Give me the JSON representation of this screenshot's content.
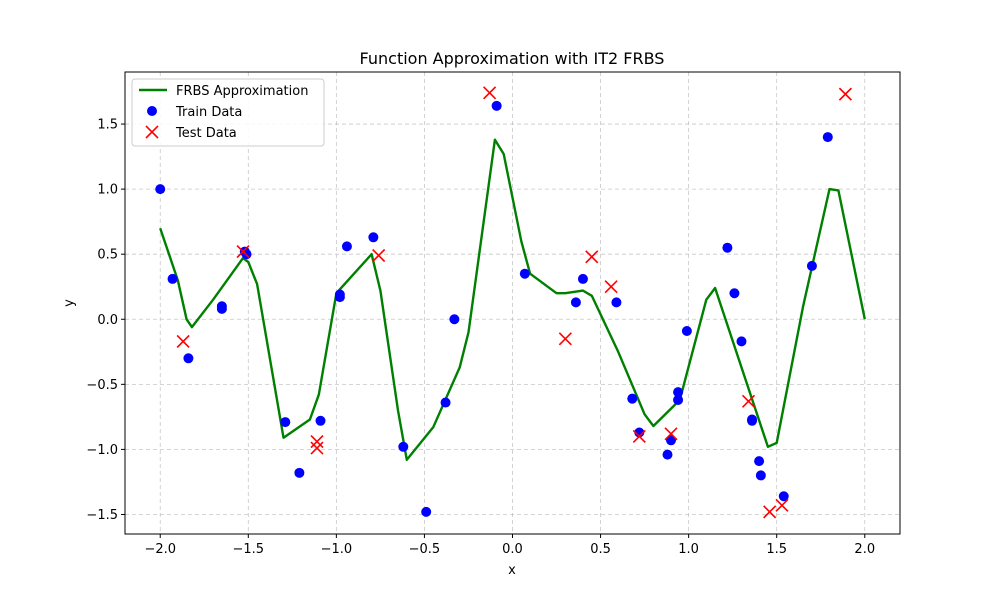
{
  "chart_data": {
    "type": "line",
    "title": "Function Approximation with IT2 FRBS",
    "xlabel": "x",
    "ylabel": "y",
    "xlim": [
      -2.2,
      2.2
    ],
    "ylim": [
      -1.65,
      1.9
    ],
    "x_ticks": [
      -2.0,
      -1.5,
      -1.0,
      -0.5,
      0.0,
      0.5,
      1.0,
      1.5,
      2.0
    ],
    "x_tick_labels": [
      "−2.0",
      "−1.5",
      "−1.0",
      "−0.5",
      "0.0",
      "0.5",
      "1.0",
      "1.5",
      "2.0"
    ],
    "y_ticks": [
      -1.5,
      -1.0,
      -0.5,
      0.0,
      0.5,
      1.0,
      1.5
    ],
    "y_tick_labels": [
      "−1.5",
      "−1.0",
      "−0.5",
      "0.0",
      "0.5",
      "1.0",
      "1.5"
    ],
    "grid": true,
    "legend_position": "top-left",
    "series": [
      {
        "name": "FRBS Approximation",
        "kind": "line",
        "color": "#008000",
        "points": [
          [
            -2.0,
            0.7
          ],
          [
            -1.9,
            0.3
          ],
          [
            -1.85,
            0.0
          ],
          [
            -1.82,
            -0.06
          ],
          [
            -1.7,
            0.15
          ],
          [
            -1.53,
            0.47
          ],
          [
            -1.5,
            0.44
          ],
          [
            -1.45,
            0.27
          ],
          [
            -1.3,
            -0.91
          ],
          [
            -1.15,
            -0.77
          ],
          [
            -1.1,
            -0.58
          ],
          [
            -1.0,
            0.2
          ],
          [
            -0.8,
            0.5
          ],
          [
            -0.75,
            0.22
          ],
          [
            -0.65,
            -0.7
          ],
          [
            -0.6,
            -1.08
          ],
          [
            -0.45,
            -0.83
          ],
          [
            -0.3,
            -0.37
          ],
          [
            -0.25,
            -0.1
          ],
          [
            -0.1,
            1.38
          ],
          [
            -0.05,
            1.27
          ],
          [
            0.05,
            0.6
          ],
          [
            0.1,
            0.35
          ],
          [
            0.25,
            0.2
          ],
          [
            0.3,
            0.2
          ],
          [
            0.4,
            0.22
          ],
          [
            0.45,
            0.18
          ],
          [
            0.6,
            -0.25
          ],
          [
            0.75,
            -0.73
          ],
          [
            0.8,
            -0.82
          ],
          [
            0.95,
            -0.62
          ],
          [
            1.1,
            0.15
          ],
          [
            1.15,
            0.24
          ],
          [
            1.45,
            -0.98
          ],
          [
            1.5,
            -0.95
          ],
          [
            1.65,
            0.1
          ],
          [
            1.8,
            1.0
          ],
          [
            1.85,
            0.99
          ],
          [
            2.0,
            0.0
          ]
        ]
      },
      {
        "name": "Train Data",
        "kind": "scatter",
        "marker": "circle",
        "color": "#0000ff",
        "points": [
          [
            -2.0,
            1.0
          ],
          [
            -1.93,
            0.31
          ],
          [
            -1.84,
            -0.3
          ],
          [
            -1.65,
            0.1
          ],
          [
            -1.65,
            0.08
          ],
          [
            -1.52,
            0.52
          ],
          [
            -1.51,
            0.5
          ],
          [
            -1.29,
            -0.79
          ],
          [
            -1.21,
            -1.18
          ],
          [
            -1.09,
            -0.78
          ],
          [
            -0.98,
            0.19
          ],
          [
            -0.98,
            0.17
          ],
          [
            -0.94,
            0.56
          ],
          [
            -0.79,
            0.63
          ],
          [
            -0.62,
            -0.98
          ],
          [
            -0.49,
            -1.48
          ],
          [
            -0.38,
            -0.64
          ],
          [
            -0.33,
            0.0
          ],
          [
            -0.09,
            1.64
          ],
          [
            0.07,
            0.35
          ],
          [
            0.36,
            0.13
          ],
          [
            0.4,
            0.31
          ],
          [
            0.59,
            0.13
          ],
          [
            0.68,
            -0.61
          ],
          [
            0.72,
            -0.87
          ],
          [
            0.88,
            -1.04
          ],
          [
            0.9,
            -0.93
          ],
          [
            0.94,
            -0.56
          ],
          [
            0.94,
            -0.62
          ],
          [
            0.99,
            -0.09
          ],
          [
            1.22,
            0.55
          ],
          [
            1.26,
            0.2
          ],
          [
            1.3,
            -0.17
          ],
          [
            1.36,
            -0.77
          ],
          [
            1.36,
            -0.78
          ],
          [
            1.4,
            -1.09
          ],
          [
            1.41,
            -1.2
          ],
          [
            1.54,
            -1.36
          ],
          [
            1.7,
            0.41
          ],
          [
            1.79,
            1.4
          ]
        ]
      },
      {
        "name": "Test Data",
        "kind": "scatter",
        "marker": "x",
        "color": "#ff0000",
        "points": [
          [
            -1.87,
            -0.17
          ],
          [
            -1.53,
            0.52
          ],
          [
            -1.11,
            -0.94
          ],
          [
            -1.11,
            -0.99
          ],
          [
            -0.76,
            0.49
          ],
          [
            -0.13,
            1.74
          ],
          [
            0.3,
            -0.15
          ],
          [
            0.45,
            0.48
          ],
          [
            0.56,
            0.25
          ],
          [
            0.72,
            -0.9
          ],
          [
            0.9,
            -0.88
          ],
          [
            1.34,
            -0.63
          ],
          [
            1.46,
            -1.48
          ],
          [
            1.53,
            -1.43
          ],
          [
            1.89,
            1.73
          ]
        ]
      }
    ]
  }
}
